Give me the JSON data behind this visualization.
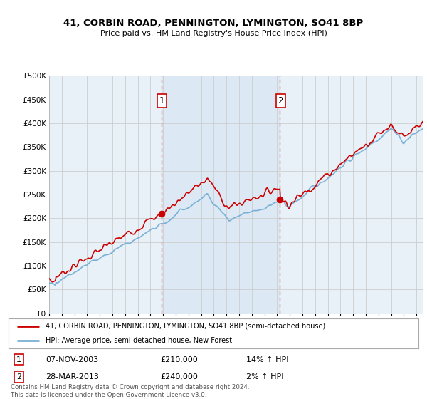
{
  "title": "41, CORBIN ROAD, PENNINGTON, LYMINGTON, SO41 8BP",
  "subtitle": "Price paid vs. HM Land Registry's House Price Index (HPI)",
  "legend_line1": "41, CORBIN ROAD, PENNINGTON, LYMINGTON, SO41 8BP (semi-detached house)",
  "legend_line2": "HPI: Average price, semi-detached house, New Forest",
  "annotation1_date": "07-NOV-2003",
  "annotation1_price": "£210,000",
  "annotation1_hpi": "14% ↑ HPI",
  "annotation1_year": 2003.85,
  "annotation1_value": 210000,
  "annotation2_date": "28-MAR-2013",
  "annotation2_price": "£240,000",
  "annotation2_hpi": "2% ↑ HPI",
  "annotation2_year": 2013.23,
  "annotation2_value": 240000,
  "hpi_color": "#7ab0d4",
  "sale_color": "#cc0000",
  "shade_color": "#dce9f5",
  "background_color": "#e8f0f8",
  "plot_bg": "#ffffff",
  "footer": "Contains HM Land Registry data © Crown copyright and database right 2024.\nThis data is licensed under the Open Government Licence v3.0.",
  "ylim": [
    0,
    500000
  ],
  "yticks": [
    0,
    50000,
    100000,
    150000,
    200000,
    250000,
    300000,
    350000,
    400000,
    450000,
    500000
  ],
  "xmin": 1995,
  "xmax": 2024.5
}
